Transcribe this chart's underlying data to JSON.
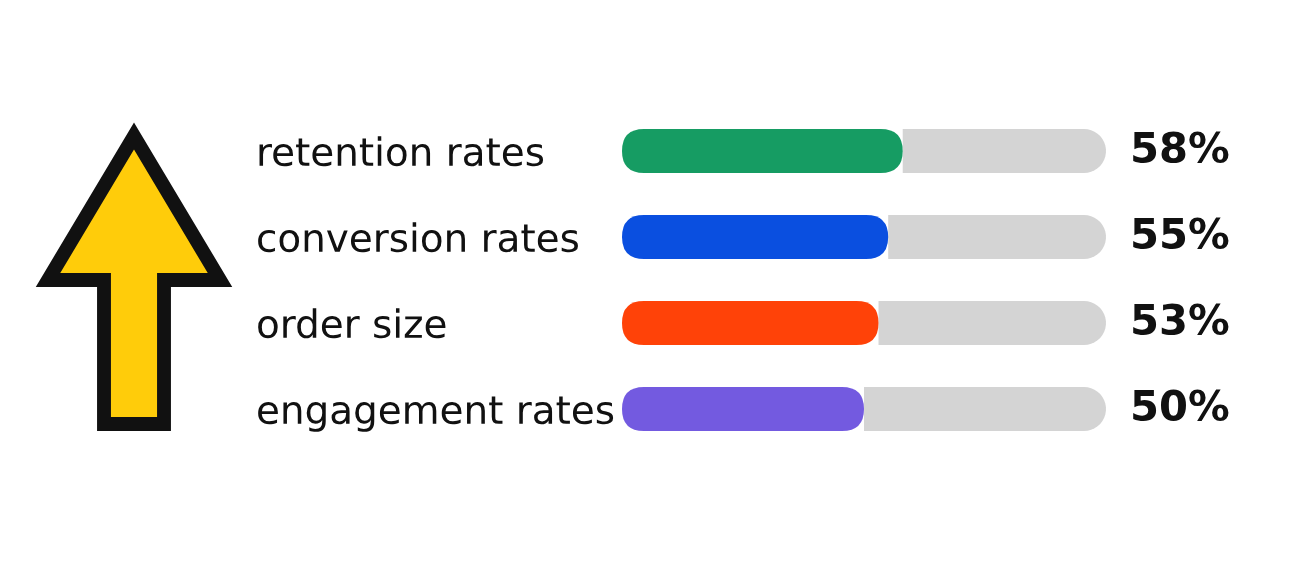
{
  "chart_data": {
    "type": "bar",
    "orientation": "horizontal",
    "stacked": true,
    "categories": [
      "retention rates",
      "conversion rates",
      "order size",
      "engagement rates"
    ],
    "series": [
      {
        "colors": [
          "#169c63",
          "#0a4fe0",
          "#ff4208",
          "#735ae0"
        ],
        "values": [
          58,
          55,
          53,
          50
        ],
        "value_labels": [
          "58%",
          "55%",
          "53%",
          "50%"
        ]
      },
      {
        "color": "#d4d4d4",
        "values": [
          42,
          45,
          47,
          50
        ]
      }
    ],
    "tick_labels": "y"
  }
}
